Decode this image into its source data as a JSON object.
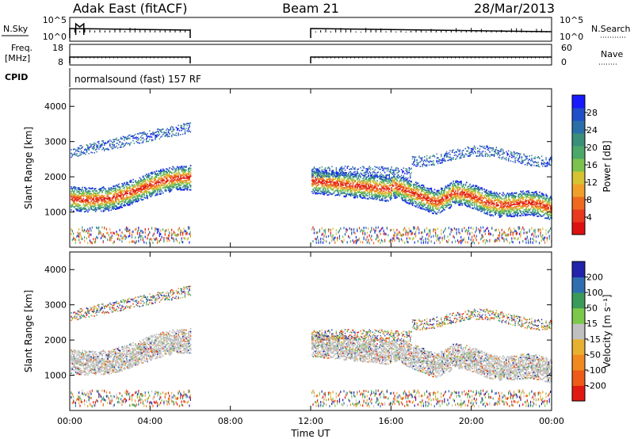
{
  "header": {
    "station": "Adak East (fitACF)",
    "beam": "Beam 21",
    "date": "28/Mar/2013"
  },
  "mini_panels": {
    "nsky_label": "N.Sky",
    "nsky_ticks": [
      "10^5",
      "10^0"
    ],
    "nsearch_label": "N.Search",
    "nsearch_ticks": [
      "10^5",
      "10^0"
    ],
    "freq_label": "Freq.",
    "freq_unit": "[MHz]",
    "freq_ticks": [
      "18",
      "8"
    ],
    "nave_label": "Nave",
    "nave_ticks": [
      "60",
      "0"
    ],
    "cpid_label": "CPID",
    "cpid_value": "normalsound (fast) 157 RF"
  },
  "chart_data": [
    {
      "type": "heatmap",
      "title": "",
      "xlabel": "Time UT",
      "ylabel": "Slant Range [km]",
      "y_ticks": [
        "4000",
        "3000",
        "2000",
        "1000"
      ],
      "ylim": [
        0,
        4500
      ],
      "data_gap_ut_hours": [
        6,
        12
      ],
      "colorbar": {
        "label": "Power [dB]",
        "ticks": [
          "28",
          "24",
          "20",
          "16",
          "12",
          "8",
          "4"
        ],
        "range": [
          0,
          32
        ],
        "colors": [
          "#1a1aff",
          "#1f4fc8",
          "#2b6fa8",
          "#3a8f7a",
          "#4aa86a",
          "#7bc24e",
          "#d6c233",
          "#f0a02a",
          "#ee6a1f",
          "#e83a1c",
          "#dd1111"
        ]
      }
    },
    {
      "type": "heatmap",
      "title": "",
      "xlabel": "Time UT",
      "ylabel": "Slant Range [km]",
      "y_ticks": [
        "4000",
        "3000",
        "2000",
        "1000"
      ],
      "ylim": [
        0,
        4500
      ],
      "data_gap_ut_hours": [
        6,
        12
      ],
      "colorbar": {
        "label": "Velocity [m s⁻¹]",
        "ticks": [
          "200",
          "100",
          "50",
          "15",
          "-15",
          "-50",
          "-100",
          "-200"
        ],
        "colors": [
          "#2222aa",
          "#2f6fb0",
          "#3a9a5a",
          "#7cc84a",
          "#c0c0c0",
          "#e8b030",
          "#f08a20",
          "#ee5a18",
          "#e01a10"
        ]
      },
      "x_ticks": [
        "00:00",
        "04:00",
        "08:00",
        "12:00",
        "16:00",
        "20:00",
        "00:00"
      ]
    }
  ]
}
